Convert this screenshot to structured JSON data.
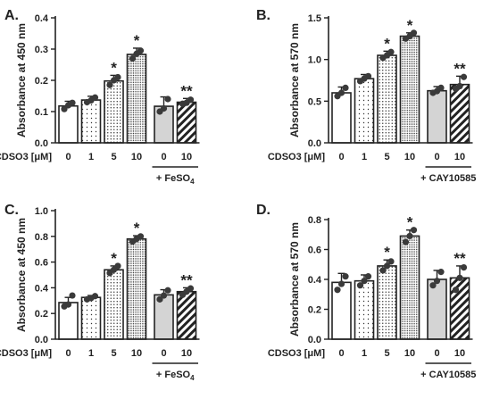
{
  "colors": {
    "ink": "#222222",
    "gray_fill": "#d4d4d4",
    "white": "#ffffff",
    "dot": "#3a3a3a"
  },
  "chart_data": [
    {
      "panel": "A.",
      "type": "bar",
      "ylabel": "Absorbance at 450 nm",
      "ylim": [
        0,
        0.4
      ],
      "yticks": [
        "0.0",
        "0.1",
        "0.2",
        "0.3",
        "0.4"
      ],
      "ytick_values": [
        0,
        0.1,
        0.2,
        0.3,
        0.4
      ],
      "xtitle": "CDSO3 [μM]",
      "categories": [
        "0",
        "1",
        "5",
        "10",
        "0",
        "10"
      ],
      "values": [
        0.118,
        0.137,
        0.198,
        0.283,
        0.117,
        0.13
      ],
      "errors": [
        0.015,
        0.012,
        0.018,
        0.02,
        0.03,
        0.012
      ],
      "points": [
        [
          0.108,
          0.128,
          0.12
        ],
        [
          0.13,
          0.145,
          0.136
        ],
        [
          0.185,
          0.21,
          0.2
        ],
        [
          0.27,
          0.295,
          0.285
        ],
        [
          0.1,
          0.14,
          0.11
        ],
        [
          0.125,
          0.138,
          0.128
        ]
      ],
      "patterns": [
        "white",
        "dots-sparse",
        "dots",
        "dots-dense",
        "gray",
        "hatch"
      ],
      "stars": [
        "",
        "",
        "*",
        "*",
        "",
        "**"
      ],
      "treatment": "+ FeSO4"
    },
    {
      "panel": "B.",
      "type": "bar",
      "ylabel": "Absorbance at 570 nm",
      "ylim": [
        0,
        1.5
      ],
      "yticks": [
        "0.0",
        "0.5",
        "1.0",
        "1.5"
      ],
      "ytick_values": [
        0,
        0.5,
        1.0,
        1.5
      ],
      "xtitle": "CDSO3 [μM]",
      "categories": [
        "0",
        "1",
        "5",
        "10",
        "0",
        "10"
      ],
      "values": [
        0.6,
        0.77,
        1.05,
        1.28,
        0.625,
        0.7
      ],
      "errors": [
        0.07,
        0.05,
        0.05,
        0.04,
        0.05,
        0.1
      ],
      "points": [
        [
          0.56,
          0.66,
          0.6
        ],
        [
          0.74,
          0.8,
          0.77
        ],
        [
          1.02,
          1.09,
          1.05
        ],
        [
          1.25,
          1.32,
          1.28
        ],
        [
          0.6,
          0.66,
          0.62
        ],
        [
          0.65,
          0.79,
          0.68
        ]
      ],
      "patterns": [
        "white",
        "dots-sparse",
        "dots",
        "dots-dense",
        "gray",
        "hatch"
      ],
      "stars": [
        "",
        "",
        "*",
        "*",
        "",
        "**"
      ],
      "treatment": "+ CAY10585"
    },
    {
      "panel": "C.",
      "type": "bar",
      "ylabel": "Absorbance at 450 nm",
      "ylim": [
        0,
        1.0
      ],
      "yticks": [
        "0.0",
        "0.2",
        "0.4",
        "0.6",
        "0.8",
        "1.0"
      ],
      "ytick_values": [
        0,
        0.2,
        0.4,
        0.6,
        0.8,
        1.0
      ],
      "xtitle": "CDSO3 [μM]",
      "categories": [
        "0",
        "1",
        "5",
        "10",
        "0",
        "10"
      ],
      "values": [
        0.285,
        0.325,
        0.54,
        0.78,
        0.345,
        0.37
      ],
      "errors": [
        0.04,
        0.015,
        0.03,
        0.025,
        0.04,
        0.03
      ],
      "points": [
        [
          0.255,
          0.34,
          0.27
        ],
        [
          0.31,
          0.335,
          0.32
        ],
        [
          0.515,
          0.57,
          0.54
        ],
        [
          0.76,
          0.8,
          0.78
        ],
        [
          0.31,
          0.38,
          0.34
        ],
        [
          0.345,
          0.395,
          0.37
        ]
      ],
      "patterns": [
        "white",
        "dots-sparse",
        "dots",
        "dots-dense",
        "gray",
        "hatch"
      ],
      "stars": [
        "",
        "",
        "*",
        "*",
        "",
        "**"
      ],
      "treatment": "+ FeSO4"
    },
    {
      "panel": "D.",
      "type": "bar",
      "ylabel": "Absorbance at 570 nm",
      "ylim": [
        0,
        0.8
      ],
      "yticks": [
        "0.0",
        "0.2",
        "0.4",
        "0.6",
        "0.8"
      ],
      "ytick_values": [
        0,
        0.2,
        0.4,
        0.6,
        0.8
      ],
      "xtitle": "CDSO3 [μM]",
      "categories": [
        "0",
        "1",
        "5",
        "10",
        "0",
        "10"
      ],
      "values": [
        0.38,
        0.39,
        0.49,
        0.69,
        0.4,
        0.41
      ],
      "errors": [
        0.06,
        0.04,
        0.04,
        0.04,
        0.06,
        0.08
      ],
      "points": [
        [
          0.33,
          0.42,
          0.37
        ],
        [
          0.36,
          0.42,
          0.39
        ],
        [
          0.46,
          0.52,
          0.49
        ],
        [
          0.65,
          0.73,
          0.69
        ],
        [
          0.36,
          0.45,
          0.39
        ],
        [
          0.33,
          0.48,
          0.41
        ]
      ],
      "patterns": [
        "white",
        "dots-sparse",
        "dots",
        "dots-dense",
        "gray",
        "hatch"
      ],
      "stars": [
        "",
        "",
        "*",
        "*",
        "",
        "**"
      ],
      "treatment": "+ CAY10585"
    }
  ]
}
